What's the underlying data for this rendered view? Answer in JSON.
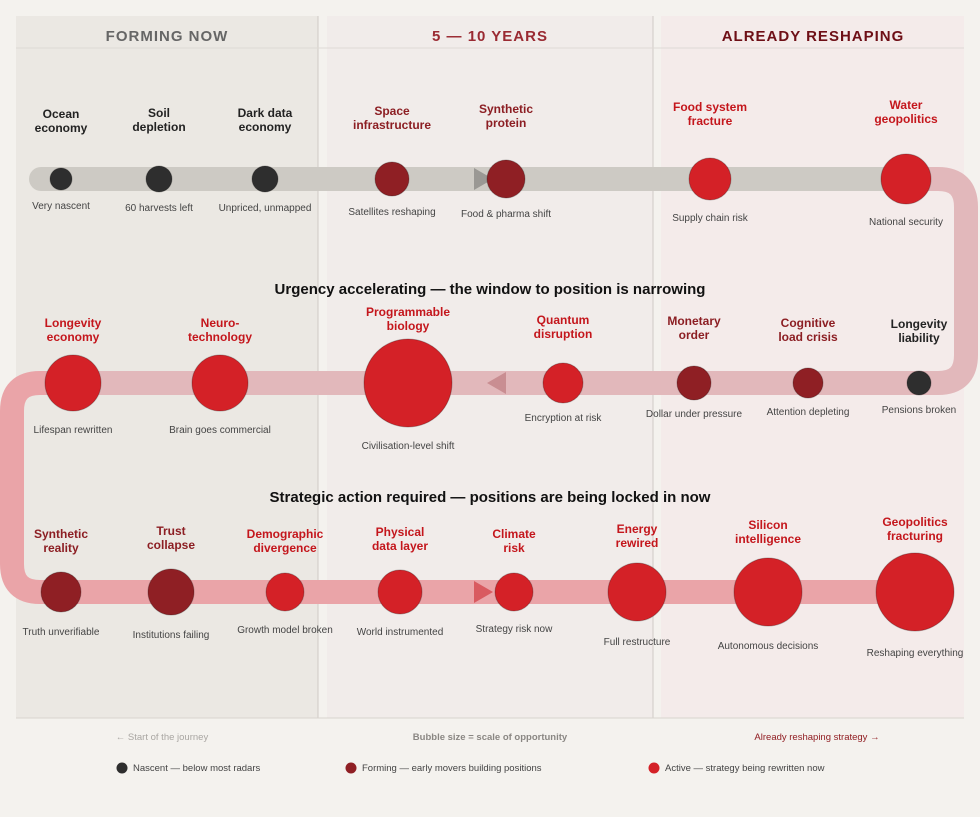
{
  "columns": [
    {
      "title": "FORMING NOW",
      "color": "#666666"
    },
    {
      "title": "5 — 10 YEARS",
      "color": "#9a2a32"
    },
    {
      "title": "ALREADY RESHAPING",
      "color": "#6e0f16"
    }
  ],
  "banners": {
    "row2": "Urgency accelerating — the window to position is narrowing",
    "row3": "Strategic action required — positions are being locked in now"
  },
  "stages": {
    "nascent": "#2e2e2e",
    "forming": "#8f1f24",
    "active": "#d42127"
  },
  "rows": [
    {
      "nodes": [
        {
          "label": [
            "Ocean",
            "economy"
          ],
          "caption": "Very nascent",
          "stage": "nascent"
        },
        {
          "label": [
            "Soil",
            "depletion"
          ],
          "caption": "60 harvests left",
          "stage": "nascent"
        },
        {
          "label": [
            "Dark data",
            "economy"
          ],
          "caption": "Unpriced, unmapped",
          "stage": "nascent"
        },
        {
          "label": [
            "Space",
            "infrastructure"
          ],
          "caption": "Satellites reshaping",
          "stage": "forming"
        },
        {
          "label": [
            "Synthetic",
            "protein"
          ],
          "caption": "Food & pharma shift",
          "stage": "forming"
        },
        {
          "label": [
            "Food system",
            "fracture"
          ],
          "caption": "Supply chain risk",
          "stage": "active"
        },
        {
          "label": [
            "Water",
            "geopolitics"
          ],
          "caption": "National security",
          "stage": "active"
        }
      ]
    },
    {
      "nodes": [
        {
          "label": [
            "Longevity",
            "economy"
          ],
          "caption": "Lifespan rewritten",
          "stage": "active"
        },
        {
          "label": [
            "Neuro-",
            "technology"
          ],
          "caption": "Brain goes commercial",
          "stage": "active"
        },
        {
          "label": [
            "Programmable",
            "biology"
          ],
          "caption": "Civilisation-level shift",
          "stage": "active"
        },
        {
          "label": [
            "Quantum",
            "disruption"
          ],
          "caption": "Encryption at risk",
          "stage": "active"
        },
        {
          "label": [
            "Monetary",
            "order"
          ],
          "caption": "Dollar under pressure",
          "stage": "forming"
        },
        {
          "label": [
            "Cognitive",
            "load crisis"
          ],
          "caption": "Attention depleting",
          "stage": "forming"
        },
        {
          "label": [
            "Longevity",
            "liability"
          ],
          "caption": "Pensions broken",
          "stage": "nascent"
        }
      ]
    },
    {
      "nodes": [
        {
          "label": [
            "Synthetic",
            "reality"
          ],
          "caption": "Truth unverifiable",
          "stage": "forming"
        },
        {
          "label": [
            "Trust",
            "collapse"
          ],
          "caption": "Institutions failing",
          "stage": "forming"
        },
        {
          "label": [
            "Demographic",
            "divergence"
          ],
          "caption": "Growth model broken",
          "stage": "active"
        },
        {
          "label": [
            "Physical",
            "data layer"
          ],
          "caption": "World instrumented",
          "stage": "active"
        },
        {
          "label": [
            "Climate",
            "risk"
          ],
          "caption": "Strategy risk now",
          "stage": "active"
        },
        {
          "label": [
            "Energy",
            "rewired"
          ],
          "caption": "Full restructure",
          "stage": "active"
        },
        {
          "label": [
            "Silicon",
            "intelligence"
          ],
          "caption": "Autonomous decisions",
          "stage": "active"
        },
        {
          "label": [
            "Geopolitics",
            "fracturing"
          ],
          "caption": "Reshaping everything",
          "stage": "active"
        }
      ]
    }
  ],
  "footer": {
    "left": "← Start of the journey",
    "center": "Bubble size = scale of opportunity",
    "right": "Already reshaping strategy →"
  },
  "legend": [
    {
      "text": "Nascent — below most radars",
      "stage": "nascent"
    },
    {
      "text": "Forming — early movers building positions",
      "stage": "forming"
    },
    {
      "text": "Active — strategy being rewritten now",
      "stage": "active"
    }
  ]
}
